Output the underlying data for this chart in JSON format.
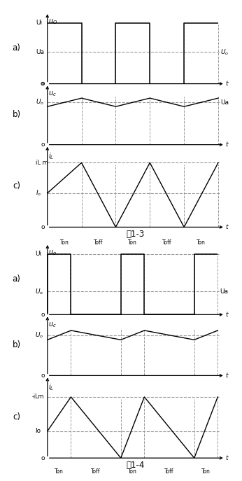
{
  "bg_color": "#ffffff",
  "fig1": {
    "title": "图1-3",
    "ton": 0.5,
    "toff": 0.5,
    "panel_a": {
      "Ui": 1.0,
      "Ua": 0.52,
      "ylabel": "u_O",
      "label_right": "U_o",
      "label_Ui": "Ui",
      "label_Ua": "Ua"
    },
    "panel_b": {
      "Uo": 0.6,
      "ripple": 0.12,
      "ylabel": "u_c",
      "label_right": "Ua",
      "label_left": "U_o"
    },
    "panel_c": {
      "iLm": 0.72,
      "Io": 0.38,
      "ylabel": "i_L",
      "label_iLm": "iL m",
      "label_Io": "I_o"
    }
  },
  "fig2": {
    "title": "图1-4",
    "ton": 0.32,
    "toff": 0.68,
    "panel_a": {
      "Ui": 1.0,
      "Ua": 0.38,
      "ylabel": "u_O",
      "label_right": "Ua",
      "label_Ui": "Ui",
      "label_Ua": "U_o"
    },
    "panel_b": {
      "Uo": 0.52,
      "ripple": 0.12,
      "ylabel": "u_c",
      "label_right": "",
      "label_left": "U_o"
    },
    "panel_c": {
      "iLm": 0.68,
      "Io": 0.3,
      "ylabel": "i_L",
      "label_iLm": "-iLm",
      "label_Io": "Io"
    }
  }
}
